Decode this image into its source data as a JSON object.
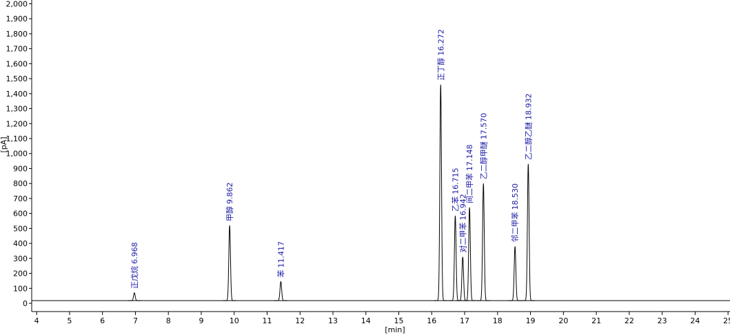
{
  "chart_data": {
    "type": "chromatogram",
    "xlabel": "[min]",
    "ylabel": "[pA]",
    "xlim": [
      3.85,
      25.06
    ],
    "ylim": [
      -55,
      2025
    ],
    "xticks": [
      4,
      5,
      6,
      7,
      8,
      9,
      10,
      11,
      12,
      13,
      14,
      15,
      16,
      17,
      18,
      19,
      20,
      21,
      22,
      23,
      24,
      25
    ],
    "yticks": [
      0,
      100,
      200,
      300,
      400,
      500,
      600,
      700,
      800,
      900,
      {
        "value": 1000,
        "label": "1,000"
      },
      {
        "value": 1100,
        "label": "1,100"
      },
      {
        "value": 1200,
        "label": "1,200"
      },
      {
        "value": 1300,
        "label": "1,300"
      },
      {
        "value": 1400,
        "label": "1,400"
      },
      {
        "value": 1500,
        "label": "1,500"
      },
      {
        "value": 1600,
        "label": "1,600"
      },
      {
        "value": 1700,
        "label": "1,700"
      },
      {
        "value": 1800,
        "label": "1,800"
      },
      {
        "value": 1900,
        "label": "1,900"
      },
      {
        "value": 2000,
        "label": "2,000"
      }
    ],
    "baseline": 18,
    "color": "#000000",
    "label_color": "#1a1aa6",
    "peaks": {
      "names": [
        "正戊烷",
        "甲醇",
        "苯",
        "正丁醇",
        "乙苯",
        "对二甲苯",
        "间二甲苯",
        "乙二醇甲醚",
        "邻二甲苯",
        "乙二醇乙醚"
      ],
      "x": [
        6.968,
        9.862,
        11.417,
        16.272,
        16.715,
        16.942,
        17.148,
        17.57,
        18.53,
        18.932
      ],
      "x_labels": [
        "6.968",
        "9.862",
        "11.417",
        "16.272",
        "16.715",
        "16.942",
        "17.148",
        "17.570",
        "18.530",
        "18.932"
      ],
      "values": [
        70,
        520,
        145,
        1460,
        585,
        310,
        640,
        800,
        380,
        930
      ]
    }
  }
}
